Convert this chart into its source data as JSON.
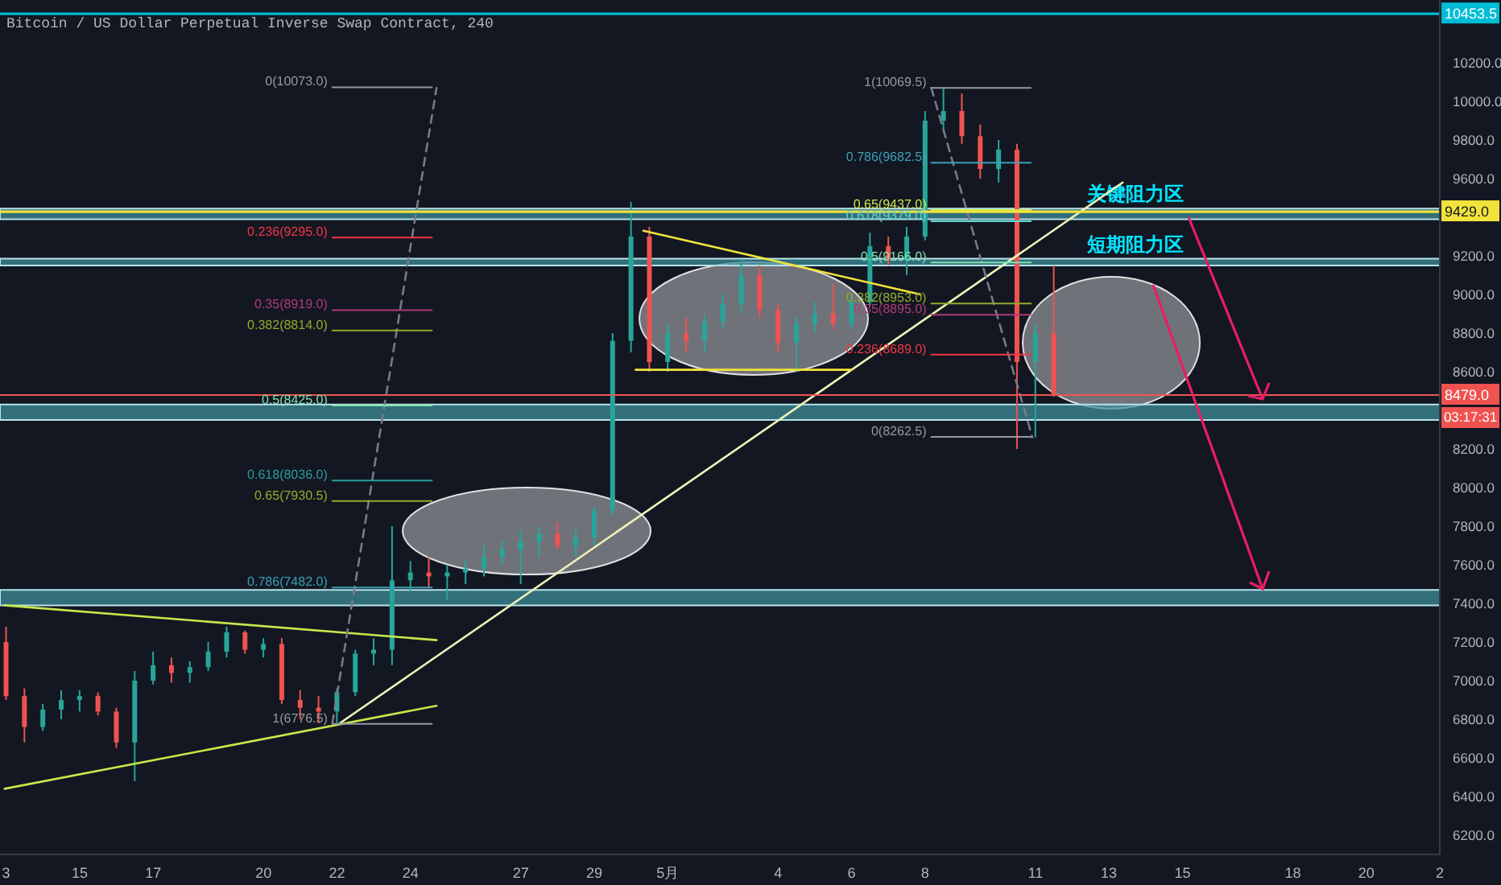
{
  "chart_data": {
    "type": "candlestick",
    "title": "Bitcoin / US Dollar Perpetual Inverse Swap Contract, 240",
    "xlim": [
      "--04-12T20:00",
      "--05-22T00:00"
    ],
    "xticks": [
      {
        "value": "--04-13",
        "label": "3"
      },
      {
        "value": "--04-15",
        "label": "15"
      },
      {
        "value": "--04-17",
        "label": "17"
      },
      {
        "value": "--04-20",
        "label": "20"
      },
      {
        "value": "--04-22",
        "label": "22"
      },
      {
        "value": "--04-24",
        "label": "24"
      },
      {
        "value": "--04-27",
        "label": "27"
      },
      {
        "value": "--04-29",
        "label": "29"
      },
      {
        "value": "--05-01",
        "label": "5月"
      },
      {
        "value": "--05-04",
        "label": "4"
      },
      {
        "value": "--05-06",
        "label": "6"
      },
      {
        "value": "--05-08",
        "label": "8"
      },
      {
        "value": "--05-11",
        "label": "11"
      },
      {
        "value": "--05-13",
        "label": "13"
      },
      {
        "value": "--05-15",
        "label": "15"
      },
      {
        "value": "--05-18",
        "label": "18"
      },
      {
        "value": "--05-20",
        "label": "20"
      },
      {
        "value": "--05-22",
        "label": "2"
      }
    ],
    "ylim": [
      6100,
      10525
    ],
    "yticks": [
      {
        "value": 6200,
        "label": "6200.0"
      },
      {
        "value": 6400,
        "label": "6400.0"
      },
      {
        "value": 6600,
        "label": "6600.0"
      },
      {
        "value": 6800,
        "label": "6800.0"
      },
      {
        "value": 7000,
        "label": "7000.0"
      },
      {
        "value": 7200,
        "label": "7200.0"
      },
      {
        "value": 7400,
        "label": "7400.0"
      },
      {
        "value": 7600,
        "label": "7600.0"
      },
      {
        "value": 7800,
        "label": "7800.0"
      },
      {
        "value": 8000,
        "label": "8000.0"
      },
      {
        "value": 8200,
        "label": "8200.0"
      },
      {
        "value": 8600,
        "label": "8600.0"
      },
      {
        "value": 8800,
        "label": "8800.0"
      },
      {
        "value": 9000,
        "label": "9000.0"
      },
      {
        "value": 9200,
        "label": "9200.0"
      },
      {
        "value": 9600,
        "label": "9600.0"
      },
      {
        "value": 9800,
        "label": "9800.0"
      },
      {
        "value": 10000,
        "label": "10000.0"
      },
      {
        "value": 10200,
        "label": "10200.0"
      }
    ],
    "series": [
      {
        "x": [
          "--04-13T00:00",
          "--04-13T12:00",
          "--04-14T00:00",
          "--04-14T12:00",
          "--04-15T00:00",
          "--04-15T12:00",
          "--04-16T00:00",
          "--04-16T12:00",
          "--04-17T00:00",
          "--04-17T12:00",
          "--04-18T00:00",
          "--04-18T12:00",
          "--04-19T00:00",
          "--04-19T12:00",
          "--04-20T00:00",
          "--04-20T12:00",
          "--04-21T00:00",
          "--04-21T12:00",
          "--04-22T00:00",
          "--04-22T12:00",
          "--04-23T00:00",
          "--04-23T12:00",
          "--04-24T00:00",
          "--04-24T12:00",
          "--04-25T00:00",
          "--04-25T12:00",
          "--04-26T00:00",
          "--04-26T12:00",
          "--04-27T00:00",
          "--04-27T12:00",
          "--04-28T00:00",
          "--04-28T12:00",
          "--04-29T00:00",
          "--04-29T12:00",
          "--04-30T00:00",
          "--04-30T12:00",
          "--05-01T00:00",
          "--05-01T12:00",
          "--05-02T00:00",
          "--05-02T12:00",
          "--05-03T00:00",
          "--05-03T12:00",
          "--05-04T00:00",
          "--05-04T12:00",
          "--05-05T00:00",
          "--05-05T12:00",
          "--05-06T00:00",
          "--05-06T12:00",
          "--05-07T00:00",
          "--05-07T12:00",
          "--05-08T00:00",
          "--05-08T12:00",
          "--05-09T00:00",
          "--05-09T12:00",
          "--05-10T00:00",
          "--05-10T12:00",
          "--05-11T00:00",
          "--05-11T12:00"
        ],
        "ohlc": [
          [
            7200,
            7280,
            6900,
            6920
          ],
          [
            6920,
            6960,
            6680,
            6760
          ],
          [
            6760,
            6880,
            6740,
            6850
          ],
          [
            6850,
            6950,
            6800,
            6900
          ],
          [
            6900,
            6950,
            6840,
            6920
          ],
          [
            6920,
            6940,
            6820,
            6840
          ],
          [
            6840,
            6860,
            6650,
            6680
          ],
          [
            6680,
            7050,
            6480,
            7000
          ],
          [
            7000,
            7150,
            6980,
            7080
          ],
          [
            7080,
            7120,
            6990,
            7040
          ],
          [
            7040,
            7100,
            6990,
            7070
          ],
          [
            7070,
            7200,
            7050,
            7150
          ],
          [
            7150,
            7280,
            7120,
            7250
          ],
          [
            7250,
            7260,
            7140,
            7160
          ],
          [
            7160,
            7220,
            7120,
            7190
          ],
          [
            7190,
            7220,
            6880,
            6900
          ],
          [
            6900,
            6950,
            6800,
            6860
          ],
          [
            6860,
            6920,
            6780,
            6840
          ],
          [
            6840,
            6960,
            6780,
            6940
          ],
          [
            6940,
            7160,
            6920,
            7140
          ],
          [
            7140,
            7220,
            7080,
            7160
          ],
          [
            7160,
            7800,
            7080,
            7520
          ],
          [
            7520,
            7620,
            7460,
            7560
          ],
          [
            7560,
            7640,
            7480,
            7540
          ],
          [
            7540,
            7600,
            7420,
            7560
          ],
          [
            7560,
            7620,
            7500,
            7580
          ],
          [
            7580,
            7700,
            7540,
            7640
          ],
          [
            7640,
            7720,
            7600,
            7680
          ],
          [
            7680,
            7780,
            7500,
            7720
          ],
          [
            7720,
            7800,
            7640,
            7760
          ],
          [
            7760,
            7820,
            7680,
            7700
          ],
          [
            7700,
            7780,
            7640,
            7740
          ],
          [
            7740,
            7900,
            7700,
            7880
          ],
          [
            7880,
            8800,
            7860,
            8760
          ],
          [
            8760,
            9480,
            8700,
            9300
          ],
          [
            9300,
            9350,
            8600,
            8650
          ],
          [
            8650,
            8850,
            8600,
            8800
          ],
          [
            8800,
            8880,
            8700,
            8760
          ],
          [
            8760,
            8900,
            8700,
            8860
          ],
          [
            8860,
            9000,
            8820,
            8950
          ],
          [
            8950,
            9180,
            8900,
            9100
          ],
          [
            9100,
            9150,
            8880,
            8920
          ],
          [
            8920,
            8950,
            8700,
            8750
          ],
          [
            8750,
            8880,
            8600,
            8850
          ],
          [
            8850,
            8960,
            8800,
            8900
          ],
          [
            8900,
            9050,
            8820,
            8850
          ],
          [
            8850,
            9000,
            8820,
            8960
          ],
          [
            8960,
            9320,
            8940,
            9250
          ],
          [
            9250,
            9300,
            9150,
            9180
          ],
          [
            9180,
            9350,
            9100,
            9300
          ],
          [
            9300,
            9950,
            9280,
            9900
          ],
          [
            9900,
            10069.5,
            9850,
            9950
          ],
          [
            9950,
            10040,
            9780,
            9820
          ],
          [
            9820,
            9880,
            9600,
            9650
          ],
          [
            9650,
            9800,
            9580,
            9750
          ],
          [
            9750,
            9780,
            8200,
            8650
          ],
          [
            8650,
            8850,
            8260,
            8800
          ],
          [
            8800,
            9150,
            8470,
            8479
          ]
        ],
        "colors": [
          "#ef5350",
          "#ef5350",
          "#26a69a",
          "#26a69a",
          "#26a69a",
          "#ef5350",
          "#ef5350",
          "#26a69a",
          "#26a69a",
          "#ef5350",
          "#26a69a",
          "#26a69a",
          "#26a69a",
          "#ef5350",
          "#26a69a",
          "#ef5350",
          "#ef5350",
          "#ef5350",
          "#26a69a",
          "#26a69a",
          "#26a69a",
          "#26a69a",
          "#26a69a",
          "#ef5350",
          "#26a69a",
          "#26a69a",
          "#26a69a",
          "#26a69a",
          "#26a69a",
          "#26a69a",
          "#ef5350",
          "#26a69a",
          "#26a69a",
          "#26a69a",
          "#26a69a",
          "#ef5350",
          "#26a69a",
          "#ef5350",
          "#26a69a",
          "#26a69a",
          "#26a69a",
          "#ef5350",
          "#ef5350",
          "#26a69a",
          "#26a69a",
          "#ef5350",
          "#26a69a",
          "#26a69a",
          "#ef5350",
          "#26a69a",
          "#26a69a",
          "#26a69a",
          "#ef5350",
          "#ef5350",
          "#26a69a",
          "#ef5350",
          "#26a69a",
          "#ef5350"
        ]
      },
      {
        "type": "line",
        "color": "#c6e84b",
        "x": [
          "--04-12T23:00",
          "--04-24T17:00"
        ],
        "values": [
          7390,
          7210
        ]
      },
      {
        "type": "line",
        "color": "#c6e84b",
        "x": [
          "--04-12T23:00",
          "--04-24T17:00"
        ],
        "values": [
          6440,
          6870
        ]
      },
      {
        "type": "line",
        "color": "#eef3b8",
        "x": [
          "--04-22T02:00",
          "--05-13T09:00"
        ],
        "values": [
          6780,
          9580
        ]
      },
      {
        "type": "line",
        "color": "#f2e33c",
        "x": [
          "--04-30T08:00",
          "--05-07T21:00"
        ],
        "values": [
          9330,
          9000
        ]
      },
      {
        "type": "line",
        "color": "#f2e33c",
        "x": [
          "--04-30T03:00",
          "--05-06T00:00"
        ],
        "values": [
          8610,
          8610
        ]
      },
      {
        "type": "line",
        "color": "#787b86",
        "line_style": "dashed",
        "x": [
          "--04-21T21:00",
          "--04-24T17:00"
        ],
        "values": [
          6780,
          10070
        ]
      },
      {
        "type": "line",
        "color": "#787b86",
        "line_style": "dashed",
        "x": [
          "--05-08T04:00",
          "--05-10T22:00"
        ],
        "values": [
          10070,
          8260
        ]
      },
      {
        "type": "line",
        "name": "0(10073.0)",
        "color": "#9598a1",
        "x": [
          "--04-21T21:00",
          "--04-24T14:00"
        ],
        "values": [
          10073,
          10073
        ]
      },
      {
        "type": "line",
        "name": "0.236(9295.0)",
        "color": "#f23645",
        "x": [
          "--04-21T21:00",
          "--04-24T14:00"
        ],
        "values": [
          9295,
          9295
        ]
      },
      {
        "type": "line",
        "name": "0.35(8919.0)",
        "color": "#b03a78",
        "x": [
          "--04-21T21:00",
          "--04-24T14:00"
        ],
        "values": [
          8919,
          8919
        ]
      },
      {
        "type": "line",
        "name": "0.382(8814.0)",
        "color": "#8fae2b",
        "x": [
          "--04-21T21:00",
          "--04-24T14:00"
        ],
        "values": [
          8814,
          8814
        ]
      },
      {
        "type": "line",
        "name": "0.5(8425.0)",
        "color": "#7fe3b2",
        "x": [
          "--04-21T21:00",
          "--04-24T14:00"
        ],
        "values": [
          8425,
          8425
        ]
      },
      {
        "type": "line",
        "name": "0.618(8036.0)",
        "color": "#2a9d9a",
        "x": [
          "--04-21T21:00",
          "--04-24T14:00"
        ],
        "values": [
          8036,
          8036
        ]
      },
      {
        "type": "line",
        "name": "0.65(7930.5)",
        "color": "#8fae2b",
        "x": [
          "--04-21T21:00",
          "--04-24T14:00"
        ],
        "values": [
          7930.5,
          7930.5
        ]
      },
      {
        "type": "line",
        "name": "0.786(7482.0)",
        "color": "#3aa0b4",
        "x": [
          "--04-21T21:00",
          "--04-24T14:00"
        ],
        "values": [
          7482,
          7482
        ]
      },
      {
        "type": "line",
        "name": "1(6776.5)",
        "color": "#9598a1",
        "x": [
          "--04-21T21:00",
          "--04-24T14:00"
        ],
        "values": [
          6776.5,
          6776.5
        ]
      },
      {
        "type": "line",
        "name": "1(10069.5)",
        "color": "#9598a1",
        "x": [
          "--05-08T04:00",
          "--05-10T21:00"
        ],
        "values": [
          10069.5,
          10069.5
        ]
      },
      {
        "type": "line",
        "name": "0.786(9682.5)",
        "color": "#3aa0b4",
        "x": [
          "--05-08T04:00",
          "--05-10T21:00"
        ],
        "values": [
          9682.5,
          9682.5
        ]
      },
      {
        "type": "line",
        "name": "0.65(9437.0)",
        "color": "#c8e84a",
        "x": [
          "--05-08T04:00",
          "--05-10T21:00"
        ],
        "values": [
          9437,
          9437
        ]
      },
      {
        "type": "line",
        "name": "0.618(9379.0)",
        "color": "#5fd8cf",
        "x": [
          "--05-08T04:00",
          "--05-10T21:00"
        ],
        "values": [
          9379,
          9379
        ]
      },
      {
        "type": "line",
        "name": "0.5(9166.0)",
        "color": "#7fe3b2",
        "x": [
          "--05-08T04:00",
          "--05-10T21:00"
        ],
        "values": [
          9166,
          9166
        ]
      },
      {
        "type": "line",
        "name": "0.382(8953.0)",
        "color": "#8fae2b",
        "x": [
          "--05-08T04:00",
          "--05-10T21:00"
        ],
        "values": [
          8953,
          8953
        ]
      },
      {
        "type": "line",
        "name": "0.35(8895.0)",
        "color": "#b03a78",
        "x": [
          "--05-08T04:00",
          "--05-10T21:00"
        ],
        "values": [
          8895,
          8895
        ]
      },
      {
        "type": "line",
        "name": "0.236(8689.0)",
        "color": "#f23645",
        "x": [
          "--05-08T04:00",
          "--05-10T21:00"
        ],
        "values": [
          8689,
          8689
        ]
      },
      {
        "type": "line",
        "name": "0(8262.5)",
        "color": "#9598a1",
        "x": [
          "--05-08T04:00",
          "--05-10T21:00"
        ],
        "values": [
          8262.5,
          8262.5
        ]
      }
    ],
    "ref_lines": [
      {
        "axis": "y",
        "value": 10453.5,
        "label": "10453.5",
        "color": "#00bcd4"
      },
      {
        "axis": "y",
        "value": 9429,
        "label": "9429.0",
        "color": "#f2e33c"
      },
      {
        "axis": "y",
        "value": 8479,
        "label": "8479.0",
        "color": "#ef5350"
      }
    ],
    "bands": [
      {
        "axis": "y",
        "from": 7390,
        "to": 7470,
        "color": "#3e8d99"
      },
      {
        "axis": "y",
        "from": 9390,
        "to": 9445,
        "label": "关键阻力区",
        "color": "#3e8d99"
      },
      {
        "axis": "y",
        "from": 9150,
        "to": 9185,
        "label": "短期阻力区",
        "color": "#3e8d99"
      },
      {
        "axis": "y",
        "from": 8350,
        "to": 8430,
        "color": "#3e8d99"
      }
    ],
    "annotations": [
      "03:17:31"
    ]
  }
}
